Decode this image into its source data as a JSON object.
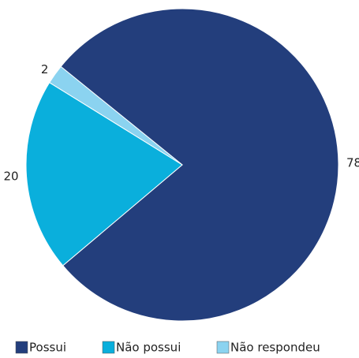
{
  "chart_data": {
    "type": "pie",
    "categories": [
      "Possui",
      "Não possui",
      "Não respondeu"
    ],
    "values": [
      78,
      20,
      2
    ],
    "colors": [
      "#233e7c",
      "#0aafdc",
      "#8bd3f0"
    ],
    "legend": "bottom"
  }
}
